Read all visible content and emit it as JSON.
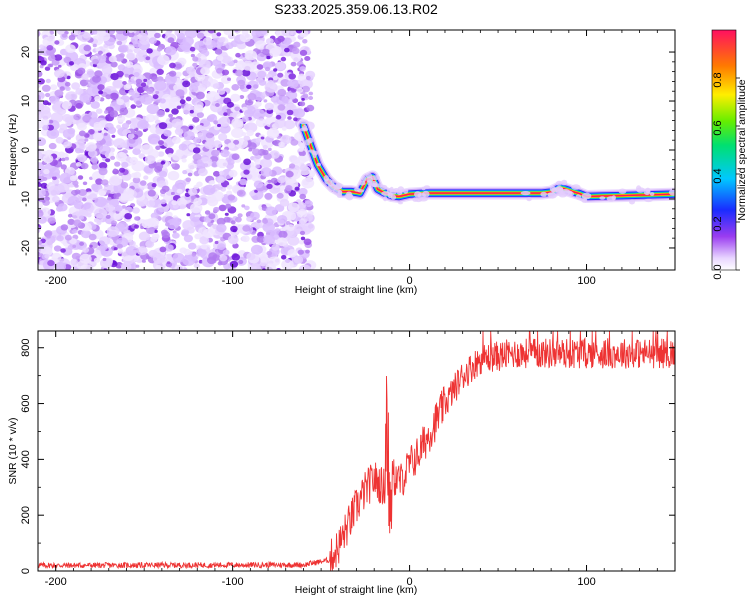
{
  "title": "S233.2025.359.06.13.R02",
  "chart_data": [
    {
      "type": "heatmap",
      "xlabel": "Height of straight line (km)",
      "ylabel": "Frequency (Hz)",
      "xlim": [
        -210,
        150
      ],
      "ylim": [
        -24.5,
        24.5
      ],
      "xticks": [
        -200,
        -100,
        0,
        100
      ],
      "yticks": [
        -20,
        -10,
        0,
        10,
        20
      ],
      "noise_region_x": [
        -210,
        -58
      ],
      "ridge": {
        "x": [
          -60,
          -57,
          -52,
          -47,
          -43,
          -38,
          -33,
          -28,
          -24,
          -21,
          -18,
          -14,
          -10,
          -6,
          0,
          10,
          30,
          60,
          75,
          80,
          85,
          88,
          92,
          96,
          100,
          110,
          120,
          130,
          140,
          150
        ],
        "y": [
          5,
          2,
          -3,
          -6,
          -7.5,
          -8.5,
          -8.5,
          -8.8,
          -6,
          -5.5,
          -8,
          -8.8,
          -9.3,
          -9.5,
          -9,
          -8.8,
          -8.8,
          -8.8,
          -8.8,
          -8.6,
          -7.7,
          -8,
          -8.5,
          -8.9,
          -9.5,
          -9.4,
          -9.3,
          -9.2,
          -9.1,
          -9.0
        ]
      },
      "colorbar": {
        "label": "Normalized spectral amplitude",
        "range": [
          0,
          1
        ],
        "ticks": [
          0.0,
          0.2,
          0.4,
          0.6,
          0.8
        ]
      }
    },
    {
      "type": "line",
      "xlabel": "Height of straight line (km)",
      "ylabel": "SNR (10 * v/v)",
      "xlim": [
        -210,
        150
      ],
      "ylim": [
        0,
        860
      ],
      "xticks": [
        -200,
        -100,
        0,
        100
      ],
      "yticks": [
        0,
        200,
        400,
        600,
        800
      ],
      "color": "#ee3333",
      "envelope": {
        "x": [
          -210,
          -60,
          -45,
          -40,
          -35,
          -30,
          -25,
          -20,
          -15,
          -10,
          -5,
          0,
          5,
          10,
          20,
          30,
          40,
          60,
          80,
          100,
          120,
          150
        ],
        "y": [
          20,
          22,
          40,
          90,
          160,
          230,
          290,
          330,
          300,
          340,
          320,
          380,
          420,
          480,
          600,
          700,
          760,
          780,
          780,
          780,
          780,
          780
        ]
      }
    }
  ]
}
